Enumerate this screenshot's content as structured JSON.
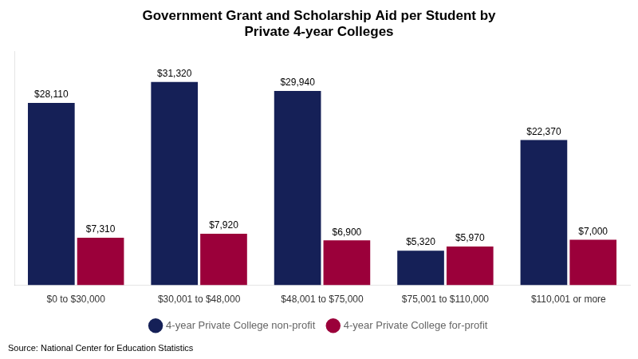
{
  "chart_data": {
    "type": "bar",
    "title": "Government Grant and Scholarship Aid per Student by\nPrivate 4-year Colleges",
    "categories": [
      "$0 to $30,000",
      "$30,001 to $48,000",
      "$48,001 to $75,000",
      "$75,001 to $110,000",
      "$110,001 or more"
    ],
    "series": [
      {
        "name": "4-year Private College non-profit",
        "color": "#152057",
        "values": [
          28110,
          31320,
          29940,
          5320,
          22370
        ],
        "value_labels": [
          "$28,110",
          "$31,320",
          "$29,940",
          "$5,320",
          "$22,370"
        ]
      },
      {
        "name": "4-year Private College for-profit",
        "color": "#9b003a",
        "values": [
          7310,
          7920,
          6900,
          5970,
          7000
        ],
        "value_labels": [
          "$7,310",
          "$7,920",
          "$6,900",
          "$5,970",
          "$7,000"
        ]
      }
    ],
    "annotations": [
      "Source: National Center for Education Statistics"
    ],
    "ylim": [
      0,
      36000
    ],
    "grid": false,
    "legend": "bottom",
    "data_labels": true,
    "tick_labels": "x"
  }
}
